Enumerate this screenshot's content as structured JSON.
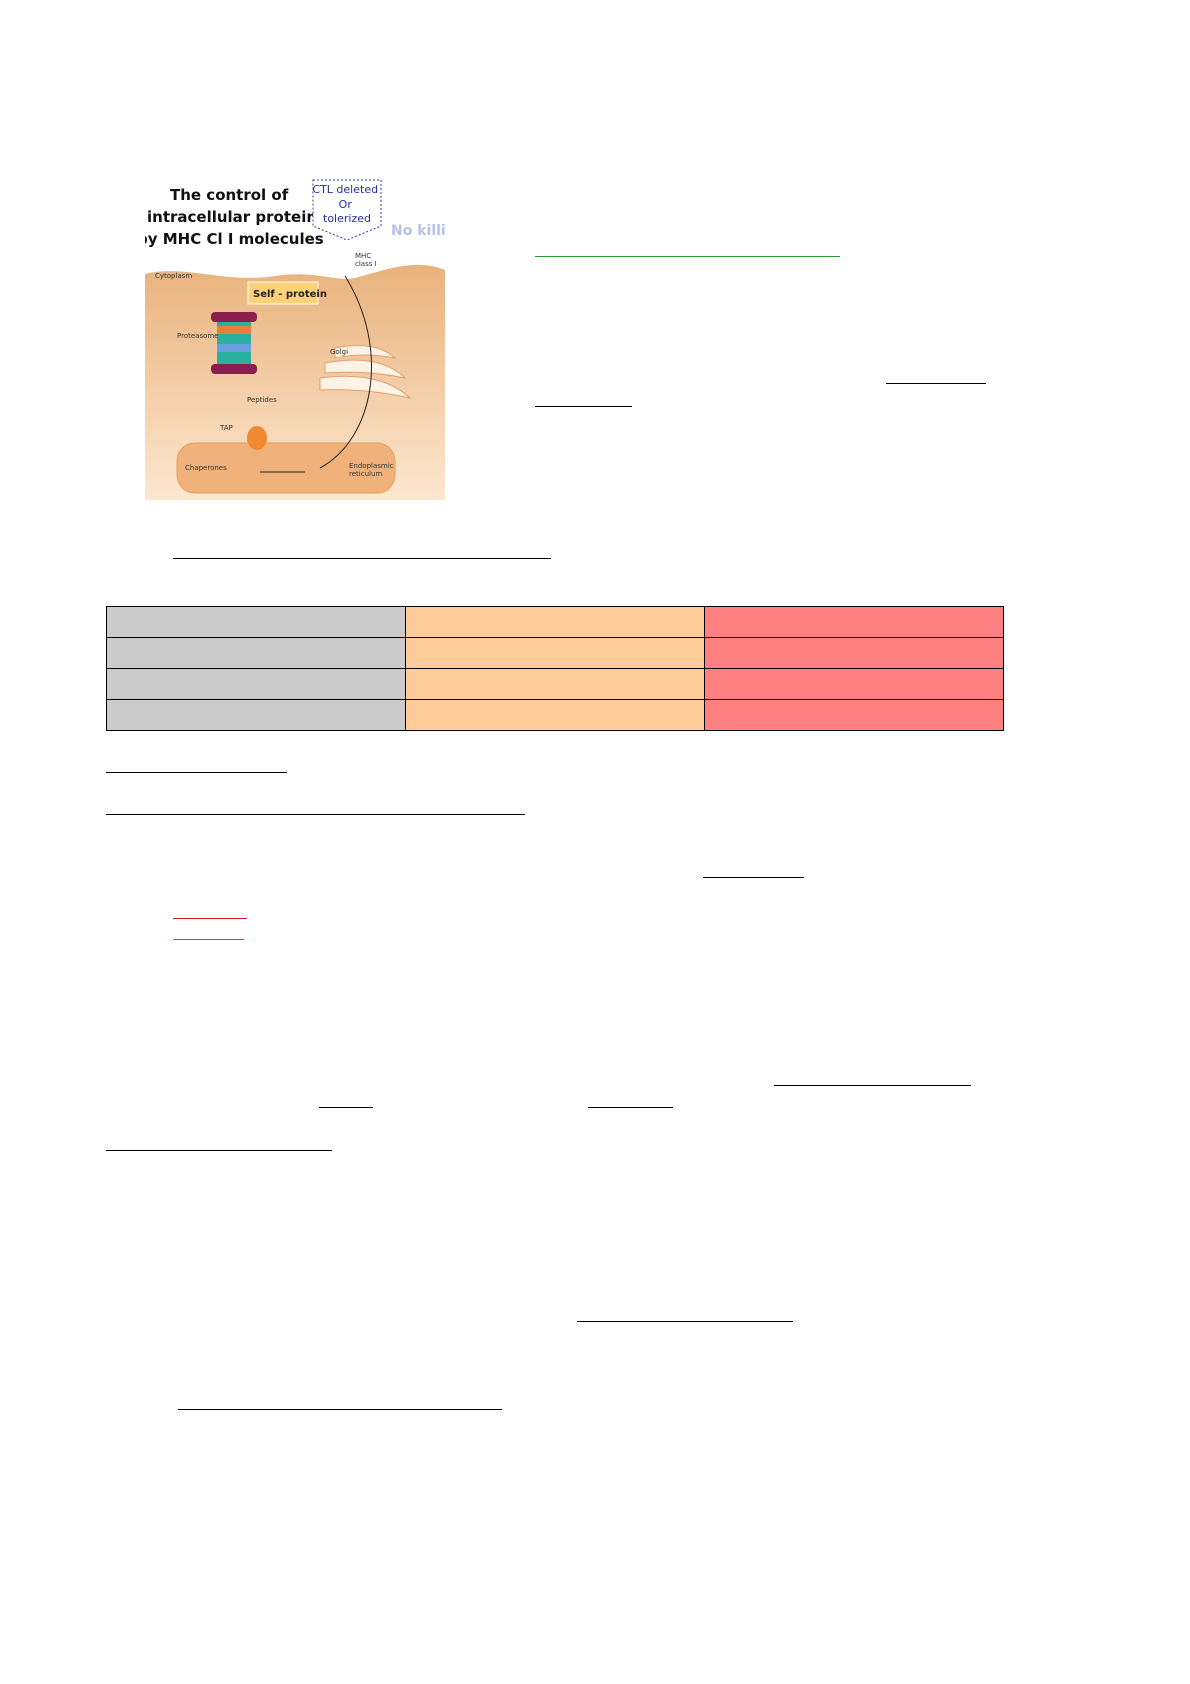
{
  "figure": {
    "title_lines": [
      "The control of",
      "intracellular proteins",
      "by MHC Cl I molecules"
    ],
    "callout_lines": [
      "CTL deleted",
      "Or",
      "tolerized"
    ],
    "no_killing": "No killing",
    "labels": {
      "mhc": "MHC",
      "mhc2": "class I",
      "cytoplasm": "Cytoplasm",
      "self_protein": "Self - protein",
      "proteasome": "Proteasome",
      "golgi": "Golgi",
      "peptides": "Peptides",
      "tap": "TAP",
      "chaperones": "Chaperones",
      "er1": "Endoplasmic",
      "er2": "reticulum"
    }
  },
  "table": {
    "rows": 4,
    "column_colors": [
      "#cbcbcb",
      "#ffcb99",
      "#ff8080"
    ]
  },
  "colors": {
    "underline_green": "#2a9a2a",
    "underline_red": "#c0201e"
  }
}
